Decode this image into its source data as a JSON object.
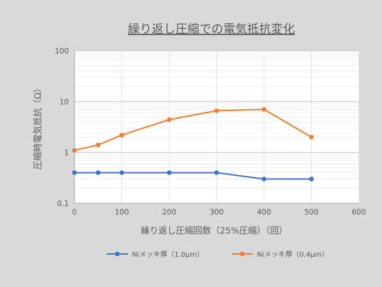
{
  "chart_data": {
    "type": "line",
    "title": "繰り返し圧縮での電気抵抗変化",
    "xlabel": "繰り返し圧縮回数（25%圧縮）（回）",
    "ylabel": "圧縮時電気抵抗（Ω）",
    "x_scale": "linear",
    "y_scale": "log",
    "xlim": [
      0,
      600
    ],
    "ylim": [
      0.1,
      100
    ],
    "x_ticks": [
      0,
      100,
      200,
      300,
      400,
      500,
      600
    ],
    "y_ticks": [
      0.1,
      1,
      10,
      100
    ],
    "x_tick_labels": [
      "0",
      "100",
      "200",
      "300",
      "400",
      "500",
      "600"
    ],
    "y_tick_labels": [
      "0.1",
      "1",
      "10",
      "100"
    ],
    "grid": true,
    "legend_position": "bottom",
    "series": [
      {
        "name": "Niメッキ厚（1.0μm）",
        "color": "#4472c4",
        "x": [
          0,
          50,
          100,
          200,
          300,
          400,
          500
        ],
        "y": [
          0.4,
          0.4,
          0.4,
          0.4,
          0.4,
          0.3,
          0.3
        ]
      },
      {
        "name": "Niメッキ厚（0.4μm）",
        "color": "#ed7d31",
        "x": [
          0,
          50,
          100,
          200,
          300,
          400,
          500
        ],
        "y": [
          1.1,
          1.4,
          2.2,
          4.4,
          6.6,
          7.0,
          2.0
        ]
      }
    ]
  }
}
